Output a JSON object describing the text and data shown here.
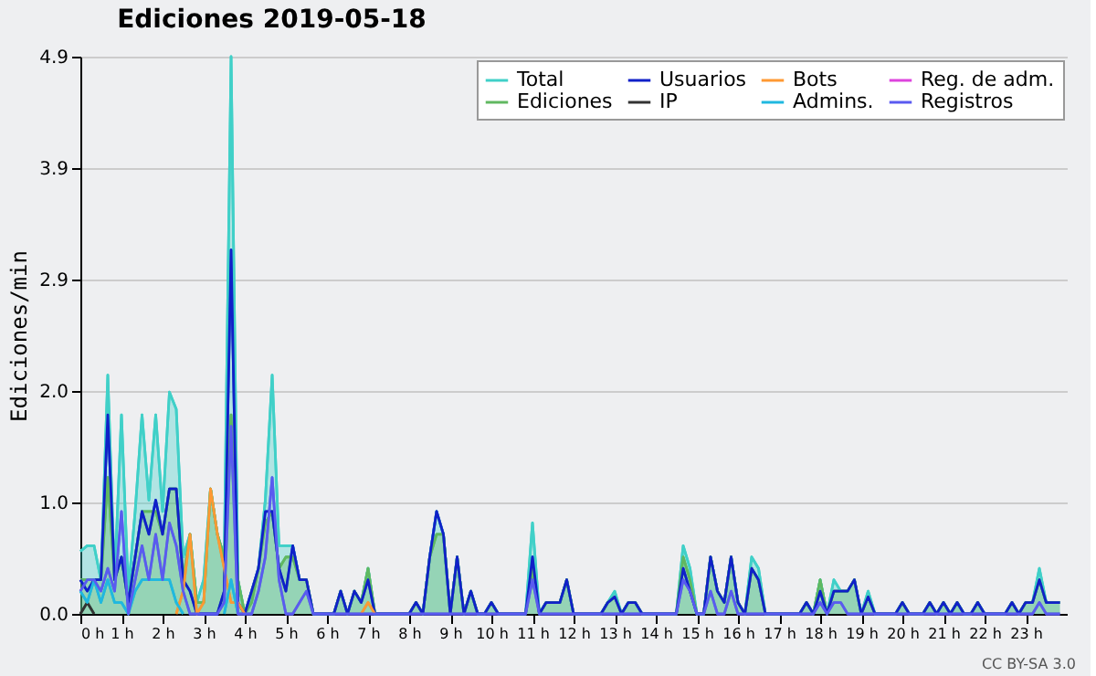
{
  "chart_data": {
    "type": "line",
    "title": "Ediciones  2019-05-18",
    "ylabel": "Ediciones/min",
    "x": [
      0,
      0.167,
      0.333,
      0.5,
      0.667,
      0.833,
      1,
      1.167,
      1.333,
      1.5,
      1.667,
      1.833,
      2,
      2.167,
      2.333,
      2.5,
      2.667,
      2.833,
      3,
      3.167,
      3.333,
      3.5,
      3.667,
      3.833,
      4,
      4.167,
      4.333,
      4.5,
      4.667,
      4.833,
      5,
      5.167,
      5.333,
      5.5,
      5.667,
      5.833,
      6,
      6.167,
      6.333,
      6.5,
      6.667,
      6.833,
      7,
      7.167,
      7.333,
      7.5,
      7.667,
      7.833,
      8,
      8.167,
      8.333,
      8.5,
      8.667,
      8.833,
      9,
      9.167,
      9.333,
      9.5,
      9.667,
      9.833,
      10,
      10.167,
      10.333,
      10.5,
      10.667,
      10.833,
      11,
      11.167,
      11.333,
      11.5,
      11.667,
      11.833,
      12,
      12.167,
      12.333,
      12.5,
      12.667,
      12.833,
      13,
      13.167,
      13.333,
      13.5,
      13.667,
      13.833,
      14,
      14.167,
      14.333,
      14.5,
      14.667,
      14.833,
      15,
      15.167,
      15.333,
      15.5,
      15.667,
      15.833,
      16,
      16.167,
      16.333,
      16.5,
      16.667,
      16.833,
      17,
      17.167,
      17.333,
      17.5,
      17.667,
      17.833,
      18,
      18.167,
      18.333,
      18.5,
      18.667,
      18.833,
      19,
      19.167,
      19.333,
      19.5,
      19.667,
      19.833,
      20,
      20.167,
      20.333,
      20.5,
      20.667,
      20.833,
      21,
      21.167,
      21.333,
      21.5,
      21.667,
      21.833,
      22,
      22.167,
      22.333,
      22.5,
      22.667,
      22.833,
      23,
      23.167,
      23.333,
      23.5,
      23.667,
      23.833
    ],
    "series": [
      {
        "name": "Total",
        "type": "area",
        "color": "#40d0c8",
        "values": [
          0.55,
          0.6,
          0.6,
          0.3,
          2.1,
          0.3,
          1.75,
          0.2,
          0.9,
          1.75,
          1.0,
          1.75,
          0.9,
          1.95,
          1.8,
          0.5,
          0.7,
          0.1,
          0.3,
          1.1,
          0.7,
          0.5,
          4.9,
          0.3,
          0,
          0.2,
          0.4,
          1.0,
          2.1,
          0.6,
          0.6,
          0.6,
          0.3,
          0.3,
          0,
          0,
          0,
          0,
          0.2,
          0,
          0.2,
          0.1,
          0.4,
          0,
          0,
          0,
          0,
          0,
          0,
          0.1,
          0,
          0.5,
          0.9,
          0.7,
          0,
          0.5,
          0,
          0.2,
          0,
          0,
          0.1,
          0,
          0,
          0,
          0,
          0,
          0.8,
          0,
          0.1,
          0.1,
          0.1,
          0.3,
          0,
          0,
          0,
          0,
          0,
          0.1,
          0.2,
          0,
          0.1,
          0.1,
          0,
          0,
          0,
          0,
          0,
          0,
          0.6,
          0.4,
          0,
          0,
          0.5,
          0.2,
          0.1,
          0.5,
          0.1,
          0,
          0.5,
          0.4,
          0,
          0,
          0,
          0,
          0,
          0,
          0.1,
          0,
          0.3,
          0,
          0.3,
          0.2,
          0.2,
          0.3,
          0,
          0.2,
          0,
          0,
          0,
          0,
          0.1,
          0,
          0,
          0,
          0.1,
          0,
          0.1,
          0,
          0.1,
          0,
          0,
          0.1,
          0,
          0,
          0,
          0,
          0.1,
          0,
          0.1,
          0.1,
          0.4,
          0.1,
          0.1,
          0.1
        ]
      },
      {
        "name": "Ediciones",
        "type": "area",
        "color": "#60b860",
        "values": [
          0.3,
          0.3,
          0.3,
          0.3,
          1.2,
          0.3,
          0.5,
          0.1,
          0.5,
          0.9,
          0.9,
          0.9,
          0.7,
          1.1,
          1.1,
          0.3,
          0.7,
          0.1,
          0.1,
          1.1,
          0.7,
          0.5,
          1.75,
          0.3,
          0,
          0.1,
          0.4,
          0.8,
          0.9,
          0.4,
          0.5,
          0.5,
          0.3,
          0.3,
          0,
          0,
          0,
          0,
          0.2,
          0,
          0.2,
          0.1,
          0.4,
          0,
          0,
          0,
          0,
          0,
          0,
          0.1,
          0,
          0.5,
          0.7,
          0.7,
          0,
          0.5,
          0,
          0.2,
          0,
          0,
          0.1,
          0,
          0,
          0,
          0,
          0,
          0.4,
          0,
          0.1,
          0.1,
          0.1,
          0.3,
          0,
          0,
          0,
          0,
          0,
          0.1,
          0.15,
          0,
          0.1,
          0.1,
          0,
          0,
          0,
          0,
          0,
          0,
          0.5,
          0.3,
          0,
          0,
          0.5,
          0.2,
          0.1,
          0.5,
          0.1,
          0,
          0.4,
          0.3,
          0,
          0,
          0,
          0,
          0,
          0,
          0.1,
          0,
          0.3,
          0,
          0.2,
          0.2,
          0.2,
          0.3,
          0,
          0.15,
          0,
          0,
          0,
          0,
          0.1,
          0,
          0,
          0,
          0.1,
          0,
          0.1,
          0,
          0.1,
          0,
          0,
          0.1,
          0,
          0,
          0,
          0,
          0.1,
          0,
          0.1,
          0.1,
          0.3,
          0.1,
          0.1,
          0.1
        ]
      },
      {
        "name": "Usuarios",
        "color": "#1020c8",
        "values": [
          0.3,
          0.2,
          0.3,
          0.3,
          1.75,
          0.3,
          0.5,
          0.1,
          0.5,
          0.9,
          0.7,
          1.0,
          0.7,
          1.1,
          1.1,
          0.3,
          0.2,
          0,
          0,
          0,
          0,
          0.2,
          3.2,
          0.1,
          0,
          0.2,
          0.4,
          0.9,
          0.9,
          0.4,
          0.2,
          0.6,
          0.3,
          0.3,
          0,
          0,
          0,
          0,
          0.2,
          0,
          0.2,
          0.1,
          0.3,
          0,
          0,
          0,
          0,
          0,
          0,
          0.1,
          0,
          0.5,
          0.9,
          0.7,
          0,
          0.5,
          0,
          0.2,
          0,
          0,
          0.1,
          0,
          0,
          0,
          0,
          0,
          0.5,
          0,
          0.1,
          0.1,
          0.1,
          0.3,
          0,
          0,
          0,
          0,
          0,
          0.1,
          0.15,
          0,
          0.1,
          0.1,
          0,
          0,
          0,
          0,
          0,
          0,
          0.4,
          0.2,
          0,
          0,
          0.5,
          0.2,
          0.1,
          0.5,
          0.1,
          0,
          0.4,
          0.3,
          0,
          0,
          0,
          0,
          0,
          0,
          0.1,
          0,
          0.2,
          0,
          0.2,
          0.2,
          0.2,
          0.3,
          0,
          0.15,
          0,
          0,
          0,
          0,
          0.1,
          0,
          0,
          0,
          0.1,
          0,
          0.1,
          0,
          0.1,
          0,
          0,
          0.1,
          0,
          0,
          0,
          0,
          0.1,
          0,
          0.1,
          0.1,
          0.3,
          0.1,
          0.1,
          0.1
        ]
      },
      {
        "name": "IP",
        "color": "#333333",
        "values": [
          0,
          0.1,
          0,
          null,
          null,
          null,
          null,
          null,
          null,
          null,
          null,
          null,
          null,
          null,
          null,
          null,
          null,
          null,
          null,
          null,
          null,
          null,
          null,
          null,
          null,
          null,
          null,
          null,
          null,
          null,
          null,
          null,
          null,
          null,
          null,
          null,
          null,
          null,
          null,
          null,
          null,
          null,
          null,
          null,
          null,
          null,
          null,
          null,
          null,
          null,
          null,
          null,
          null,
          null,
          null,
          null,
          null,
          null,
          null,
          null,
          null,
          null,
          null,
          null,
          null,
          null,
          null,
          null,
          null,
          null,
          null,
          null,
          null,
          null,
          null,
          null,
          null,
          null,
          null,
          null,
          null,
          null,
          null,
          null,
          null,
          null,
          null,
          null,
          null,
          null,
          null,
          null,
          null,
          null,
          null,
          null,
          null,
          null,
          null,
          null,
          null,
          null,
          null,
          null,
          null,
          null,
          null,
          null,
          null,
          null,
          null,
          null,
          null,
          null,
          null,
          null,
          null,
          null,
          null,
          null,
          null,
          null,
          null,
          null,
          null,
          null,
          null,
          null,
          null,
          null,
          null,
          null,
          null,
          null,
          null,
          null,
          null,
          null,
          null,
          null,
          null,
          null,
          null,
          null
        ]
      },
      {
        "name": "Bots",
        "color": "#ff9933",
        "values": [
          null,
          null,
          null,
          null,
          null,
          null,
          null,
          null,
          null,
          null,
          null,
          null,
          null,
          null,
          0,
          0.2,
          0.7,
          0,
          0.1,
          1.1,
          0.7,
          0.4,
          0.1,
          0.1,
          0,
          null,
          null,
          null,
          null,
          null,
          null,
          null,
          null,
          null,
          null,
          null,
          null,
          null,
          null,
          null,
          null,
          0,
          0.1,
          0,
          null,
          null,
          null,
          null,
          null,
          null,
          null,
          null,
          null,
          null,
          null,
          null,
          null,
          null,
          null,
          null,
          null,
          null,
          null,
          null,
          null,
          null,
          null,
          null,
          null,
          null,
          null,
          null,
          null,
          null,
          null,
          null,
          null,
          null,
          null,
          null,
          null,
          null,
          null,
          null,
          null,
          null,
          null,
          null,
          null,
          null,
          null,
          null,
          null,
          null,
          null,
          null,
          null,
          null,
          null,
          null,
          null,
          null,
          null,
          null,
          null,
          null,
          null,
          null,
          null,
          null,
          null,
          null,
          null,
          null,
          null,
          null,
          null,
          null,
          null,
          null,
          null,
          null,
          null,
          null,
          null,
          null,
          null,
          null,
          null,
          null,
          null,
          null,
          null,
          null,
          null,
          null,
          null,
          null,
          null,
          null,
          null,
          null,
          null,
          null
        ]
      },
      {
        "name": "Admins.",
        "color": "#20b8e0",
        "values": [
          0.2,
          0.1,
          0.3,
          0.1,
          0.3,
          0.1,
          0.1,
          0,
          0.2,
          0.3,
          0.3,
          0.3,
          0.3,
          0.3,
          0.1,
          0,
          null,
          null,
          null,
          null,
          null,
          0,
          0.3,
          0,
          null,
          null,
          null,
          null,
          null,
          null,
          null,
          null,
          null,
          null,
          null,
          null,
          null,
          null,
          null,
          null,
          null,
          null,
          null,
          null,
          null,
          null,
          null,
          null,
          null,
          null,
          null,
          null,
          null,
          null,
          null,
          null,
          null,
          null,
          null,
          null,
          null,
          null,
          null,
          null,
          null,
          null,
          null,
          null,
          null,
          null,
          null,
          null,
          null,
          null,
          null,
          null,
          null,
          null,
          null,
          null,
          null,
          null,
          null,
          null,
          null,
          null,
          null,
          null,
          null,
          null,
          null,
          null,
          null,
          null,
          null,
          null,
          null,
          null,
          null,
          null,
          null,
          null,
          null,
          null,
          null,
          null,
          null,
          null,
          null,
          null,
          null,
          null,
          null,
          null,
          null,
          null,
          null,
          null,
          null,
          null,
          null,
          null,
          null,
          null,
          null,
          null,
          null,
          null,
          null,
          null,
          null,
          null,
          null,
          null,
          null,
          null,
          null,
          null,
          null,
          null,
          null,
          null,
          null,
          null
        ]
      },
      {
        "name": "Reg. de adm.",
        "color": "#dd44dd",
        "values": [
          null,
          null,
          null,
          null,
          null,
          null,
          null,
          null,
          null,
          null,
          null,
          null,
          null,
          null,
          null,
          null,
          null,
          null,
          null,
          null,
          null,
          null,
          null,
          null,
          null,
          null,
          null,
          null,
          null,
          null,
          null,
          null,
          null,
          null,
          null,
          null,
          null,
          null,
          null,
          null,
          null,
          null,
          null,
          null,
          null,
          null,
          null,
          null,
          null,
          null,
          null,
          null,
          null,
          null,
          null,
          null,
          null,
          null,
          null,
          null,
          null,
          null,
          null,
          null,
          null,
          null,
          null,
          null,
          null,
          null,
          null,
          null,
          null,
          null,
          null,
          null,
          null,
          null,
          null,
          null,
          null,
          null,
          null,
          null,
          null,
          null,
          null,
          null,
          null,
          null,
          null,
          null,
          null,
          null,
          null,
          null,
          null,
          null,
          null,
          null,
          null,
          null,
          null,
          null,
          null,
          null,
          null,
          null,
          null,
          null,
          null,
          null,
          null,
          null,
          null,
          null,
          null,
          null,
          null,
          null,
          null,
          null,
          null,
          null,
          null,
          null,
          null,
          null,
          null,
          null,
          null,
          null,
          null,
          null,
          null,
          null,
          null,
          null,
          null,
          null,
          null,
          null,
          null,
          null
        ]
      },
      {
        "name": "Registros",
        "color": "#5a5af0",
        "values": [
          0.2,
          0.3,
          0.3,
          0.2,
          0.4,
          0.2,
          0.9,
          0,
          0.3,
          0.6,
          0.3,
          0.7,
          0.3,
          0.8,
          0.6,
          0.2,
          0,
          0,
          0,
          0,
          0,
          0.1,
          1.65,
          0,
          0,
          0,
          0.2,
          0.5,
          1.2,
          0.3,
          0,
          0,
          0.1,
          0.2,
          0,
          0,
          0,
          0,
          0,
          0,
          0,
          0,
          0,
          0,
          0,
          0,
          0,
          0,
          0,
          0,
          0,
          0,
          0,
          0,
          0,
          0,
          0,
          0,
          0,
          0,
          0,
          0,
          0,
          0,
          0,
          0,
          0.3,
          0,
          0,
          0,
          0,
          0,
          0,
          0,
          0,
          0,
          0,
          0,
          0,
          0,
          0,
          0,
          0,
          0,
          0,
          0,
          0,
          0,
          0.3,
          0.2,
          0,
          0,
          0.2,
          0,
          0,
          0.2,
          0,
          0,
          0,
          0,
          0,
          0,
          0,
          0,
          0,
          0,
          0,
          0,
          0.1,
          0,
          0.1,
          0.1,
          0,
          0,
          0,
          0,
          0,
          0,
          0,
          0,
          0,
          0,
          0,
          0,
          0,
          0,
          0,
          0,
          0,
          0,
          0,
          0,
          0,
          0,
          0,
          0,
          0,
          0,
          0,
          0,
          0.1,
          0,
          0,
          0
        ]
      }
    ],
    "xlim": [
      0,
      24
    ],
    "xticks": [
      {
        "value": 0,
        "label": "0 h"
      },
      {
        "value": 1,
        "label": "1 h"
      },
      {
        "value": 2,
        "label": "2 h"
      },
      {
        "value": 3,
        "label": "3 h"
      },
      {
        "value": 4,
        "label": "4 h"
      },
      {
        "value": 5,
        "label": "5 h"
      },
      {
        "value": 6,
        "label": "6 h"
      },
      {
        "value": 7,
        "label": "7 h"
      },
      {
        "value": 8,
        "label": "8 h"
      },
      {
        "value": 9,
        "label": "9 h"
      },
      {
        "value": 10,
        "label": "10 h"
      },
      {
        "value": 11,
        "label": "11 h"
      },
      {
        "value": 12,
        "label": "12 h"
      },
      {
        "value": 13,
        "label": "13 h"
      },
      {
        "value": 14,
        "label": "14 h"
      },
      {
        "value": 15,
        "label": "15 h"
      },
      {
        "value": 16,
        "label": "16 h"
      },
      {
        "value": 17,
        "label": "17 h"
      },
      {
        "value": 18,
        "label": "18 h"
      },
      {
        "value": 19,
        "label": "19 h"
      },
      {
        "value": 20,
        "label": "20 h"
      },
      {
        "value": 21,
        "label": "21 h"
      },
      {
        "value": 22,
        "label": "22 h"
      },
      {
        "value": 23,
        "label": "23 h"
      }
    ],
    "ylim": [
      0,
      4.9
    ],
    "yticks": [
      {
        "value": 0,
        "label": "0.0"
      },
      {
        "value": 0.98,
        "label": "1.0"
      },
      {
        "value": 1.96,
        "label": "2.0"
      },
      {
        "value": 2.94,
        "label": "2.9"
      },
      {
        "value": 3.92,
        "label": "3.9"
      },
      {
        "value": 4.9,
        "label": "4.9"
      }
    ],
    "grid": "y",
    "legend": "top right",
    "annotations": [
      "CC BY-SA 3.0"
    ]
  }
}
